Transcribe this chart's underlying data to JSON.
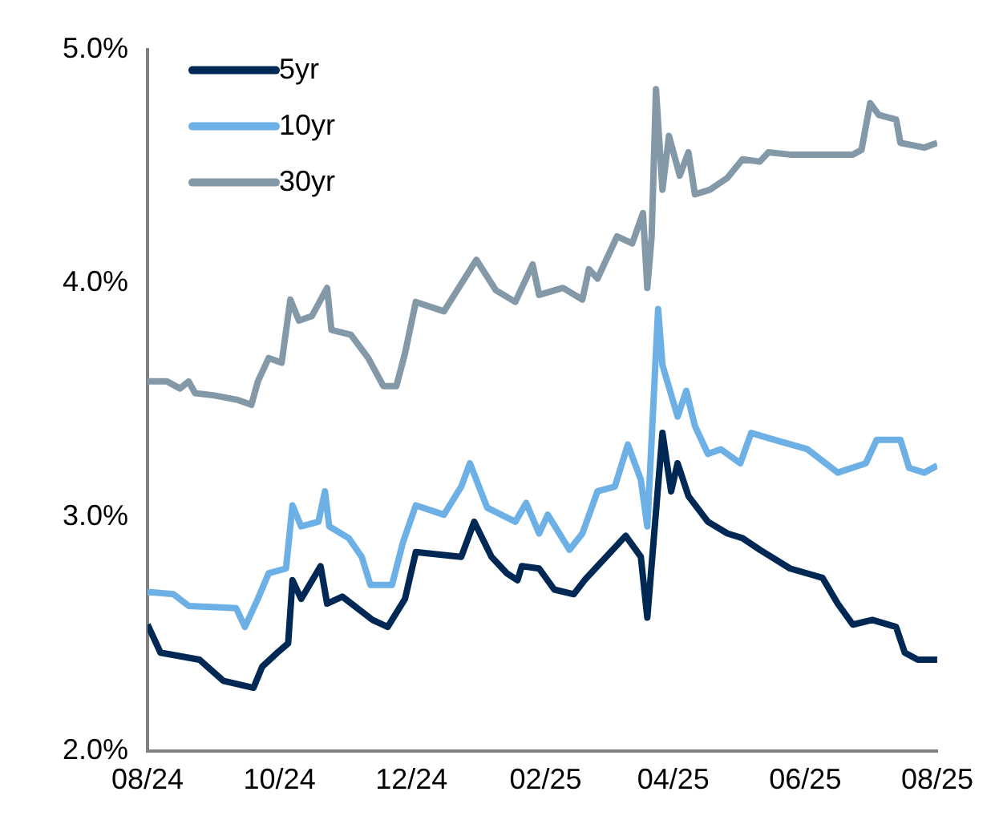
{
  "chart_data": {
    "type": "line",
    "legend": "top left",
    "grid": false,
    "xlim": [
      "2024-08-01",
      "2025-08-01"
    ],
    "xticks": [
      {
        "value": "2024-08-01",
        "label": "08/24"
      },
      {
        "value": "2024-10-01",
        "label": "10/24"
      },
      {
        "value": "2024-12-01",
        "label": "12/24"
      },
      {
        "value": "2025-02-01",
        "label": "02/25"
      },
      {
        "value": "2025-04-01",
        "label": "04/25"
      },
      {
        "value": "2025-06-01",
        "label": "06/25"
      },
      {
        "value": "2025-08-01",
        "label": "08/25"
      }
    ],
    "ylim": [
      2,
      5
    ],
    "yticks": [
      {
        "value": 2,
        "label": "2.0%"
      },
      {
        "value": 3,
        "label": "3.0%"
      },
      {
        "value": 4,
        "label": "4.0%"
      },
      {
        "value": 5,
        "label": "5.0%"
      }
    ],
    "series": [
      {
        "name": "5yr",
        "color": "#002855",
        "x": [
          "2024-08-01",
          "2024-08-07",
          "2024-08-25",
          "2024-09-05",
          "2024-09-19",
          "2024-09-23",
          "2024-09-30",
          "2024-10-05",
          "2024-10-07",
          "2024-10-11",
          "2024-10-20",
          "2024-10-23",
          "2024-10-30",
          "2024-11-13",
          "2024-11-20",
          "2024-11-28",
          "2024-12-03",
          "2024-12-24",
          "2024-12-30",
          "2025-01-07",
          "2025-01-14",
          "2025-01-19",
          "2025-01-21",
          "2025-01-29",
          "2025-02-05",
          "2025-02-14",
          "2025-02-19",
          "2025-02-25",
          "2025-03-10",
          "2025-03-17",
          "2025-03-20",
          "2025-03-27",
          "2025-03-31",
          "2025-04-03",
          "2025-04-08",
          "2025-04-17",
          "2025-04-26",
          "2025-05-03",
          "2025-05-11",
          "2025-05-25",
          "2025-06-09",
          "2025-06-16",
          "2025-06-23",
          "2025-07-02",
          "2025-07-13",
          "2025-07-17",
          "2025-07-23",
          "2025-08-01"
        ],
        "values": [
          2.54,
          2.42,
          2.39,
          2.3,
          2.27,
          2.36,
          2.42,
          2.46,
          2.73,
          2.65,
          2.79,
          2.63,
          2.66,
          2.56,
          2.53,
          2.65,
          2.85,
          2.83,
          2.98,
          2.83,
          2.76,
          2.73,
          2.79,
          2.78,
          2.69,
          2.67,
          2.73,
          2.79,
          2.92,
          2.83,
          2.57,
          3.36,
          3.11,
          3.23,
          3.09,
          2.98,
          2.93,
          2.91,
          2.86,
          2.78,
          2.74,
          2.63,
          2.54,
          2.56,
          2.53,
          2.42,
          2.39,
          2.39
        ]
      },
      {
        "name": "10yr",
        "color": "#6cb0e6",
        "x": [
          "2024-08-01",
          "2024-08-13",
          "2024-08-20",
          "2024-09-11",
          "2024-09-15",
          "2024-09-21",
          "2024-09-26",
          "2024-10-04",
          "2024-10-07",
          "2024-10-11",
          "2024-10-19",
          "2024-10-22",
          "2024-10-24",
          "2024-11-02",
          "2024-11-08",
          "2024-11-12",
          "2024-11-22",
          "2024-11-27",
          "2024-12-03",
          "2024-12-16",
          "2024-12-24",
          "2024-12-28",
          "2025-01-05",
          "2025-01-18",
          "2025-01-23",
          "2025-01-29",
          "2025-02-02",
          "2025-02-12",
          "2025-02-18",
          "2025-02-25",
          "2025-03-05",
          "2025-03-11",
          "2025-03-17",
          "2025-03-20",
          "2025-03-25",
          "2025-03-27",
          "2025-04-03",
          "2025-04-07",
          "2025-04-11",
          "2025-04-17",
          "2025-04-23",
          "2025-05-02",
          "2025-05-07",
          "2025-05-18",
          "2025-06-02",
          "2025-06-16",
          "2025-06-29",
          "2025-07-04",
          "2025-07-15",
          "2025-07-19",
          "2025-07-26",
          "2025-08-01"
        ],
        "values": [
          2.68,
          2.67,
          2.62,
          2.61,
          2.53,
          2.65,
          2.76,
          2.78,
          3.05,
          2.96,
          2.98,
          3.11,
          2.96,
          2.91,
          2.83,
          2.71,
          2.71,
          2.89,
          3.05,
          3.01,
          3.13,
          3.23,
          3.04,
          2.98,
          3.06,
          2.93,
          3.01,
          2.86,
          2.93,
          3.11,
          3.13,
          3.31,
          3.16,
          2.96,
          3.89,
          3.65,
          3.43,
          3.54,
          3.39,
          3.27,
          3.29,
          3.23,
          3.36,
          3.33,
          3.29,
          3.19,
          3.23,
          3.33,
          3.33,
          3.21,
          3.19,
          3.22
        ]
      },
      {
        "name": "30yr",
        "color": "#8499a8",
        "x": [
          "2024-08-01",
          "2024-08-10",
          "2024-08-16",
          "2024-08-20",
          "2024-08-23",
          "2024-09-01",
          "2024-09-12",
          "2024-09-18",
          "2024-09-21",
          "2024-09-26",
          "2024-10-02",
          "2024-10-06",
          "2024-10-10",
          "2024-10-16",
          "2024-10-23",
          "2024-10-25",
          "2024-11-03",
          "2024-11-11",
          "2024-11-18",
          "2024-11-24",
          "2024-11-28",
          "2024-12-03",
          "2024-12-16",
          "2024-12-31",
          "2025-01-09",
          "2025-01-18",
          "2025-01-26",
          "2025-01-29",
          "2025-02-09",
          "2025-02-18",
          "2025-02-21",
          "2025-02-25",
          "2025-03-06",
          "2025-03-13",
          "2025-03-18",
          "2025-03-20",
          "2025-03-22",
          "2025-03-24",
          "2025-03-27",
          "2025-03-30",
          "2025-04-04",
          "2025-04-08",
          "2025-04-11",
          "2025-04-18",
          "2025-04-26",
          "2025-05-03",
          "2025-05-11",
          "2025-05-15",
          "2025-05-25",
          "2025-06-23",
          "2025-06-27",
          "2025-07-01",
          "2025-07-05",
          "2025-07-13",
          "2025-07-15",
          "2025-07-26",
          "2025-08-01"
        ],
        "values": [
          3.58,
          3.58,
          3.55,
          3.58,
          3.53,
          3.52,
          3.5,
          3.48,
          3.58,
          3.68,
          3.66,
          3.93,
          3.84,
          3.86,
          3.98,
          3.8,
          3.78,
          3.68,
          3.56,
          3.56,
          3.7,
          3.92,
          3.88,
          4.1,
          3.97,
          3.92,
          4.08,
          3.95,
          3.98,
          3.93,
          4.06,
          4.02,
          4.2,
          4.17,
          4.3,
          3.98,
          4.2,
          4.83,
          4.4,
          4.63,
          4.46,
          4.56,
          4.38,
          4.4,
          4.45,
          4.53,
          4.52,
          4.56,
          4.55,
          4.55,
          4.57,
          4.77,
          4.72,
          4.7,
          4.6,
          4.58,
          4.6
        ]
      }
    ]
  }
}
